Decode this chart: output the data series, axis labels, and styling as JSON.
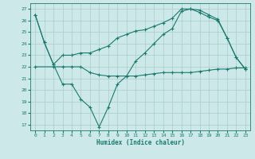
{
  "line1_x": [
    0,
    1,
    2,
    3,
    4,
    5,
    6,
    7,
    8,
    9,
    10,
    11,
    12,
    13,
    14,
    15,
    16,
    17,
    18,
    19,
    20,
    21,
    22,
    23
  ],
  "line1_y": [
    26.5,
    24.1,
    22.2,
    23.0,
    23.0,
    23.2,
    23.2,
    23.5,
    23.8,
    24.5,
    24.8,
    25.1,
    25.2,
    25.5,
    25.8,
    26.2,
    27.0,
    27.0,
    26.7,
    26.3,
    26.0,
    24.5,
    22.8,
    21.8
  ],
  "line2_x": [
    0,
    2,
    3,
    4,
    5,
    6,
    7,
    8,
    9,
    10,
    11,
    12,
    13,
    14,
    15,
    16,
    17,
    18,
    19,
    20,
    21,
    22,
    23
  ],
  "line2_y": [
    22.0,
    22.0,
    22.0,
    22.0,
    22.0,
    21.5,
    21.3,
    21.2,
    21.2,
    21.2,
    21.2,
    21.3,
    21.4,
    21.5,
    21.5,
    21.5,
    21.5,
    21.6,
    21.7,
    21.8,
    21.8,
    21.9,
    21.9
  ],
  "line3_x": [
    0,
    1,
    2,
    3,
    4,
    5,
    6,
    7,
    8,
    9,
    10,
    11,
    12,
    13,
    14,
    15,
    16,
    17,
    18,
    19,
    20,
    21,
    22,
    23
  ],
  "line3_y": [
    26.5,
    24.1,
    22.2,
    20.5,
    20.5,
    19.2,
    18.5,
    16.8,
    18.5,
    20.5,
    21.2,
    22.5,
    23.2,
    24.0,
    24.8,
    25.3,
    26.8,
    27.0,
    26.9,
    26.5,
    26.1,
    24.5,
    22.8,
    21.8
  ],
  "line_color": "#1a7a6e",
  "bg_color": "#cce8e8",
  "grid_color": "#b0d8d8",
  "xlabel": "Humidex (Indice chaleur)",
  "ylim": [
    16.5,
    27.5
  ],
  "xlim": [
    -0.5,
    23.5
  ],
  "yticks": [
    17,
    18,
    19,
    20,
    21,
    22,
    23,
    24,
    25,
    26,
    27
  ],
  "xticks": [
    0,
    1,
    2,
    3,
    4,
    5,
    6,
    7,
    8,
    9,
    10,
    11,
    12,
    13,
    14,
    15,
    16,
    17,
    18,
    19,
    20,
    21,
    22,
    23
  ]
}
